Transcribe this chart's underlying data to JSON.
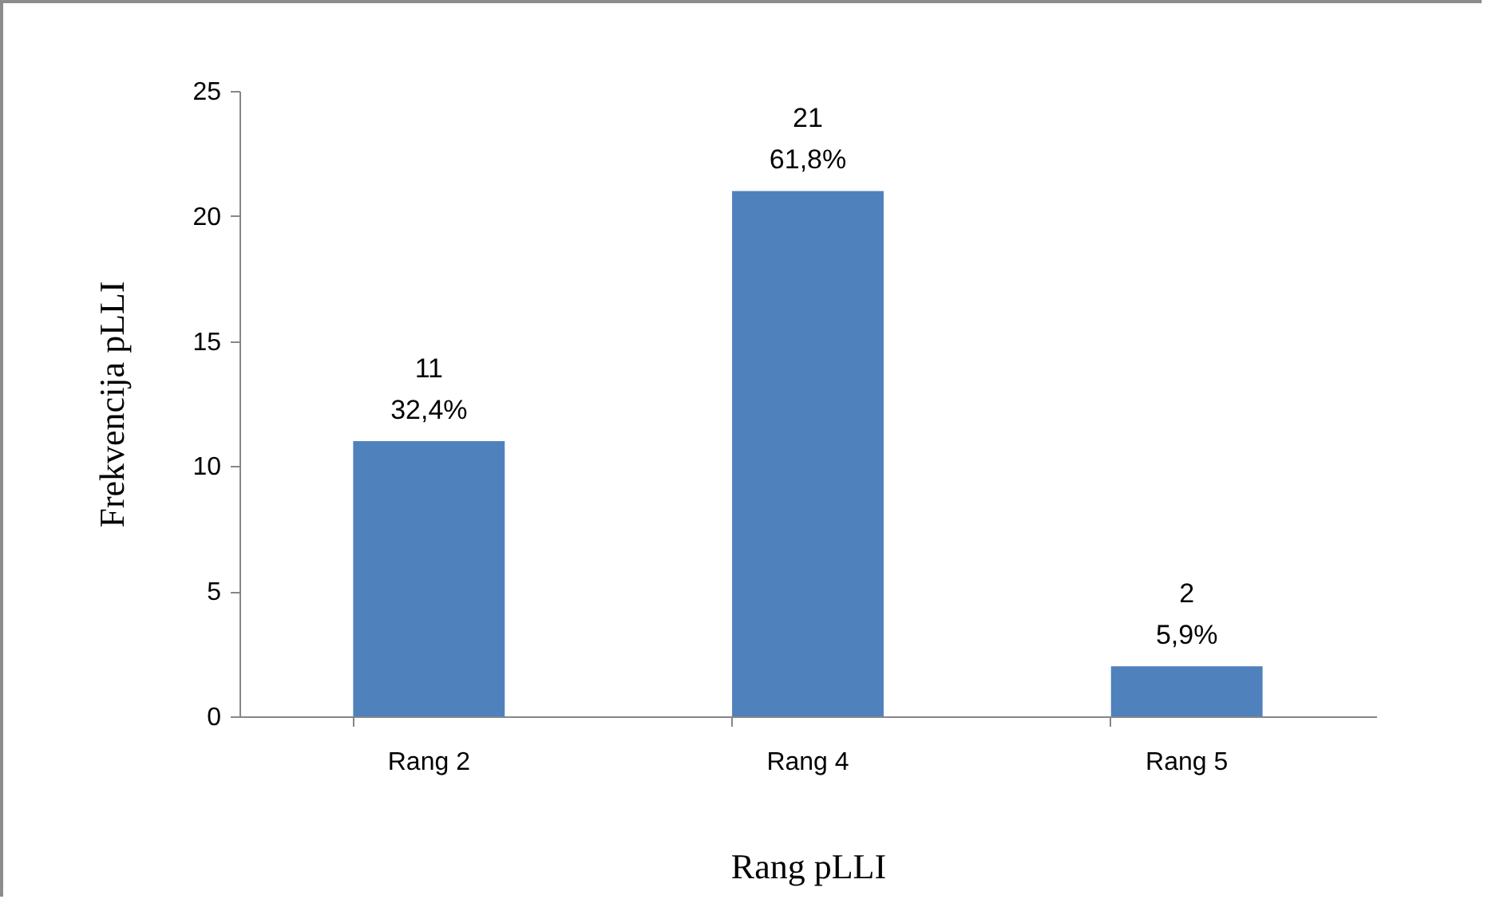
{
  "chart_data": {
    "type": "bar",
    "xlabel": "Rang pLLI",
    "ylabel": "Frekvencija pLLI",
    "categories": [
      "Rang 2",
      "Rang 4",
      "Rang 5"
    ],
    "values": [
      11,
      21,
      2
    ],
    "color": "#4f81bd",
    "value_labels": [
      "11\n32,4%",
      "21\n61,8%",
      "2\n5,9%"
    ],
    "ylim": [
      0,
      25
    ],
    "yticks": [
      0,
      5,
      10,
      15,
      20,
      25
    ],
    "grid": false
  }
}
